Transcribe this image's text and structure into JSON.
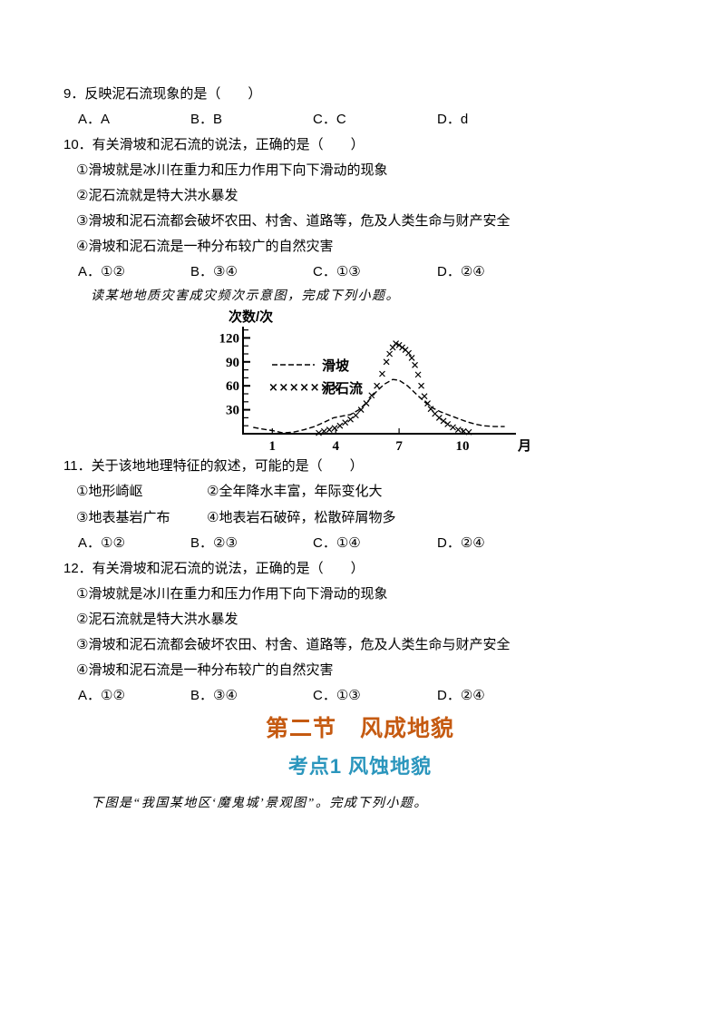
{
  "questions": [
    {
      "stem": "9．反映泥石流现象的是（　　）",
      "options": [
        "A．A",
        "B．B",
        "C．C",
        "D．d"
      ]
    },
    {
      "stem": "10．有关滑坡和泥石流的说法，正确的是（　　）",
      "statements": [
        "①滑坡就是冰川在重力和压力作用下向下滑动的现象",
        "②泥石流就是特大洪水暴发",
        "③滑坡和泥石流都会破坏农田、村舍、道路等，危及人类生命与财产安全",
        "④滑坡和泥石流是一种分布较广的自然灾害"
      ],
      "options": [
        "A．①②",
        "B．③④",
        "C．①③",
        "D．②④"
      ]
    },
    {
      "stem": "11．关于该地地理特征的叙述，可能的是（　　）",
      "statement_cols": [
        [
          "①地形崎岖",
          "②全年降水丰富，年际变化大"
        ],
        [
          "③地表基岩广布",
          "④地表岩石破碎，松散碎屑物多"
        ]
      ],
      "options": [
        "A．①②",
        "B．②③",
        "C．①④",
        "D．②④"
      ]
    },
    {
      "stem": "12．有关滑坡和泥石流的说法，正确的是（　　）",
      "statements": [
        "①滑坡就是冰川在重力和压力作用下向下滑动的现象",
        "②泥石流就是特大洪水暴发",
        "③滑坡和泥石流都会破坏农田、村舍、道路等，危及人类生命与财产安全",
        "④滑坡和泥石流是一种分布较广的自然灾害"
      ],
      "options": [
        "A．①②",
        "B．③④",
        "C．①③",
        "D．②④"
      ]
    }
  ],
  "passages": {
    "chart_intro": "读某地地质灾害成灾频次示意图，完成下列小题。",
    "image_intro": "下图是“我国某地区‘魔鬼城’景观图”。完成下列小题。"
  },
  "headings": {
    "section": "第二节　风成地貌",
    "section_color": "#C55A11",
    "kaodian": "考点1 风蚀地貌",
    "kaodian_color": "#2B96BD"
  },
  "chart_data": {
    "type": "line",
    "title": "",
    "ylabel": "次数/次",
    "x_unit": "月",
    "yticks": [
      30,
      60,
      90,
      120
    ],
    "yminor_ticks": [
      10,
      20,
      40,
      50,
      70,
      80,
      100,
      110,
      130
    ],
    "xticks": [
      1,
      4,
      7,
      10
    ],
    "xlim": [
      0,
      12.4
    ],
    "ylim": [
      0,
      135
    ],
    "grid": false,
    "legend_position": "inside-upper-left",
    "series": [
      {
        "name": "滑坡",
        "style": "dashed-line",
        "points": [
          [
            0.1,
            8
          ],
          [
            0.5,
            6
          ],
          [
            1.0,
            4
          ],
          [
            1.5,
            1
          ],
          [
            2.0,
            2
          ],
          [
            2.5,
            5
          ],
          [
            3.0,
            9
          ],
          [
            3.5,
            15
          ],
          [
            3.9,
            20
          ],
          [
            4.3,
            22
          ],
          [
            4.7,
            24
          ],
          [
            5.1,
            30
          ],
          [
            5.5,
            40
          ],
          [
            5.9,
            52
          ],
          [
            6.3,
            62
          ],
          [
            6.7,
            68
          ],
          [
            7.0,
            67
          ],
          [
            7.4,
            60
          ],
          [
            7.8,
            50
          ],
          [
            8.2,
            40
          ],
          [
            8.6,
            32
          ],
          [
            9.0,
            27
          ],
          [
            9.4,
            23
          ],
          [
            9.8,
            19
          ],
          [
            10.2,
            15
          ],
          [
            10.6,
            12
          ],
          [
            11.0,
            10
          ],
          [
            11.5,
            9
          ],
          [
            12.0,
            9
          ]
        ]
      },
      {
        "name": "泥石流",
        "style": "x-marker-line",
        "points": [
          [
            3.2,
            1
          ],
          [
            3.45,
            3
          ],
          [
            3.7,
            5
          ],
          [
            3.95,
            7
          ],
          [
            4.2,
            10
          ],
          [
            4.45,
            14
          ],
          [
            4.7,
            18
          ],
          [
            4.95,
            23
          ],
          [
            5.2,
            30
          ],
          [
            5.45,
            38
          ],
          [
            5.7,
            48
          ],
          [
            5.95,
            60
          ],
          [
            6.2,
            75
          ],
          [
            6.4,
            90
          ],
          [
            6.55,
            100
          ],
          [
            6.7,
            108
          ],
          [
            6.85,
            113
          ],
          [
            7.0,
            111
          ],
          [
            7.15,
            108
          ],
          [
            7.3,
            105
          ],
          [
            7.45,
            101
          ],
          [
            7.6,
            95
          ],
          [
            7.75,
            86
          ],
          [
            7.9,
            74
          ],
          [
            8.05,
            60
          ],
          [
            8.2,
            47
          ],
          [
            8.35,
            38
          ],
          [
            8.5,
            31
          ],
          [
            8.7,
            25
          ],
          [
            8.9,
            20
          ],
          [
            9.1,
            16
          ],
          [
            9.3,
            12
          ],
          [
            9.55,
            8
          ],
          [
            9.8,
            5
          ],
          [
            10.05,
            3
          ],
          [
            10.3,
            2
          ]
        ]
      }
    ]
  }
}
